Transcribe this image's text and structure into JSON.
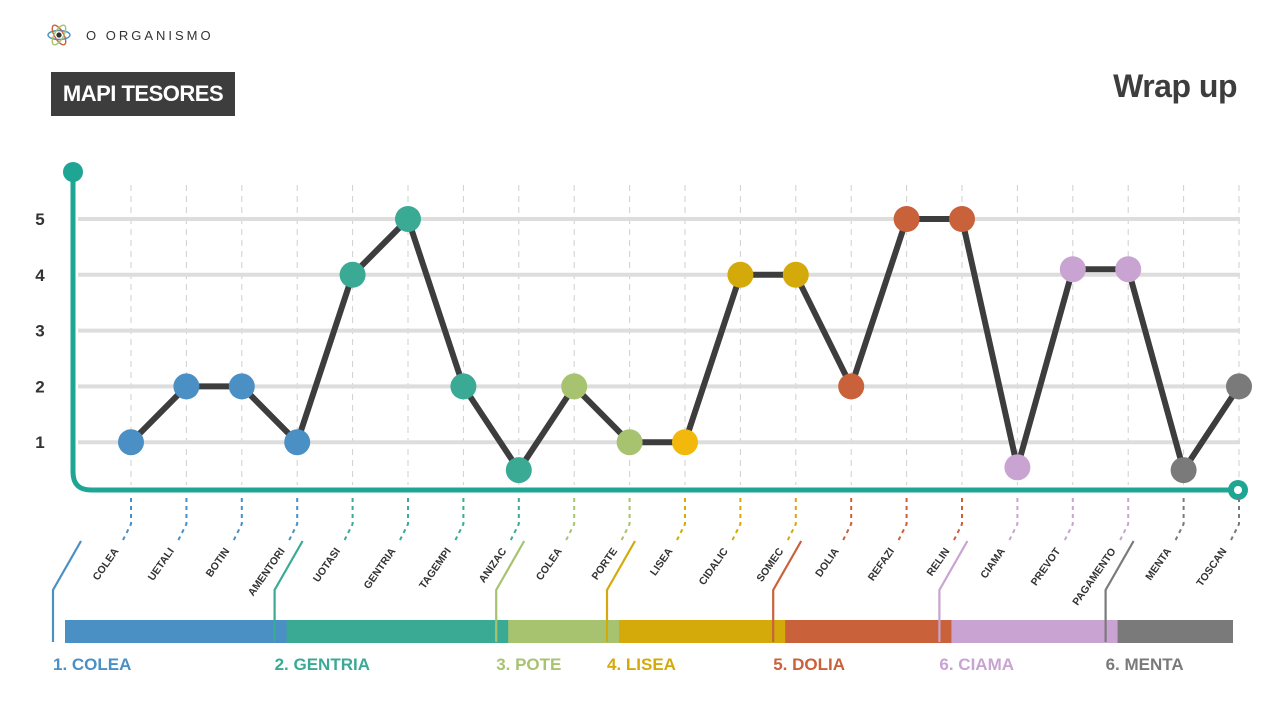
{
  "header": {
    "brand": "O ORGANISMO",
    "logo_icon": "atom-icon",
    "badge_label": "MAPI TESORES",
    "title": "Wrap up"
  },
  "colors": {
    "teal_axis": "#1fa594",
    "line": "#3d3d3d",
    "grid": "#dddddd"
  },
  "chart_data": {
    "type": "line",
    "title": "",
    "xlabel": "",
    "ylabel": "",
    "y_ticks": [
      "1",
      "2",
      "3",
      "4",
      "5"
    ],
    "ylim": [
      0.2,
      5.8
    ],
    "grid": true,
    "categories": [
      "COLEA",
      "UETALI",
      "BOTIN",
      "AMENTORI",
      "UOTASI",
      "GENTRIA",
      "TAGEMPI",
      "ANIZAC",
      "COLEA",
      "PORTE",
      "LISEA",
      "CIDALIC",
      "SOMEC",
      "DOLIA",
      "REFAZI",
      "RELIN",
      "CIAMA",
      "PREVOT",
      "PAGAMENTO",
      "MENTA",
      "TOSCAN"
    ],
    "values": [
      1,
      2,
      2,
      1,
      4,
      5,
      2,
      0.5,
      2,
      1,
      1,
      4,
      4,
      2,
      5,
      5,
      0.55,
      4.1,
      4.1,
      0.5,
      2
    ],
    "groups": [
      {
        "label": "1. COLEA",
        "color": "#4a90c4",
        "start": 0,
        "end": 3
      },
      {
        "label": "2. GENTRIA",
        "color": "#3aaa94",
        "start": 4,
        "end": 7
      },
      {
        "label": "3. POTE",
        "color": "#a7c370",
        "start": 8,
        "end": 9
      },
      {
        "label": "4. LISEA",
        "color": "#d4aa0b",
        "start": 10,
        "end": 12
      },
      {
        "label": "5. DOLIA",
        "color": "#c9613b",
        "start": 13,
        "end": 15
      },
      {
        "label": "6. CIAMA",
        "color": "#c9a3d2",
        "start": 16,
        "end": 18
      },
      {
        "label": "6. MENTA",
        "color": "#7a7a7a",
        "start": 19,
        "end": 20
      }
    ],
    "point_colors": [
      "#4a90c4",
      "#4a90c4",
      "#4a90c4",
      "#4a90c4",
      "#3aaa94",
      "#3aaa94",
      "#3aaa94",
      "#3aaa94",
      "#a7c370",
      "#a7c370",
      "#f2b80c",
      "#d4aa0b",
      "#d4aa0b",
      "#c9613b",
      "#c9613b",
      "#c9613b",
      "#c9a3d2",
      "#c9a3d2",
      "#c9a3d2",
      "#7a7a7a",
      "#7a7a7a"
    ]
  }
}
